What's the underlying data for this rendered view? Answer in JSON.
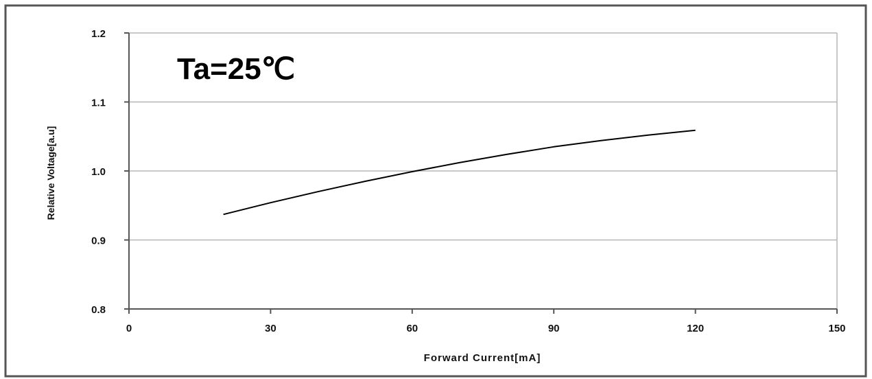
{
  "chart_data": {
    "type": "line",
    "title": "",
    "annotation": "Ta=25℃",
    "xlabel": "Forward Current[mA]",
    "ylabel": "Relative Voltage[a.u]",
    "xlim": [
      0,
      150
    ],
    "ylim": [
      0.8,
      1.2
    ],
    "x_ticks": [
      0,
      30,
      60,
      90,
      120,
      150
    ],
    "y_ticks": [
      0.8,
      0.9,
      1.0,
      1.1,
      1.2
    ],
    "x_tick_labels": [
      "0",
      "30",
      "60",
      "90",
      "120",
      "150"
    ],
    "y_tick_labels": [
      "0.8",
      "0.9",
      "1.0",
      "1.1",
      "1.2"
    ],
    "grid": "horizontal",
    "series": [
      {
        "x": [
          20,
          30,
          40,
          50,
          60,
          70,
          80,
          90,
          100,
          110,
          120
        ],
        "y": [
          0.937,
          0.954,
          0.97,
          0.985,
          0.999,
          1.012,
          1.024,
          1.035,
          1.044,
          1.052,
          1.059
        ],
        "color": "#000000"
      }
    ]
  }
}
